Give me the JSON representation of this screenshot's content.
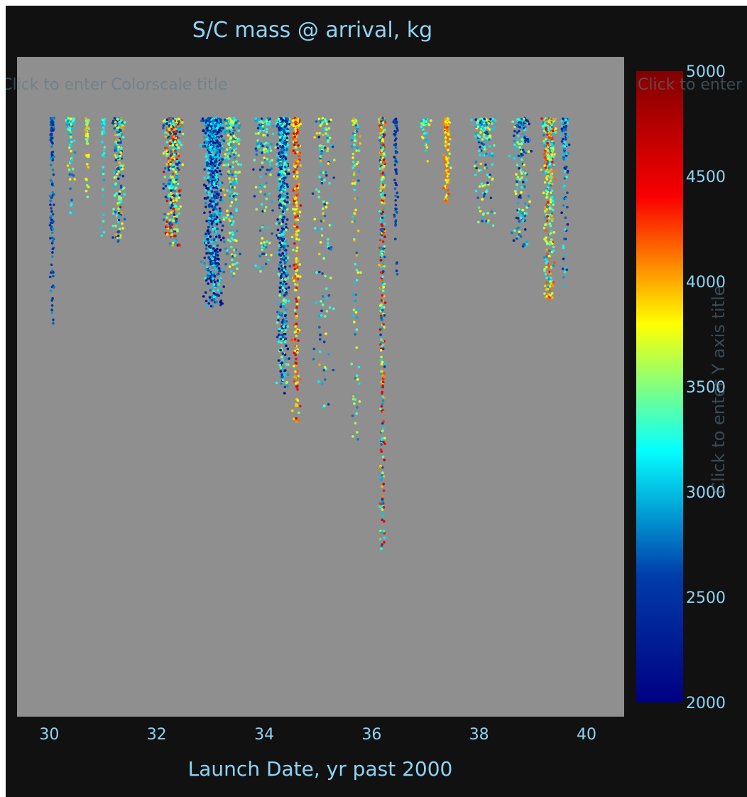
{
  "chart_data": {
    "type": "scatter",
    "title": "S/C mass @ arrival, kg",
    "xlabel": "Launch Date, yr past 2000",
    "ylabel": "",
    "xlim": [
      29.4,
      40.7
    ],
    "x_ticks": [
      30,
      32,
      34,
      36,
      38,
      40
    ],
    "y_ticks": [],
    "yaxis_visible": false,
    "ylim": [
      0,
      1
    ],
    "grid": false,
    "legend": "none",
    "plot_background": "#8f8f8f",
    "paper_background": "#111111",
    "colorscale": {
      "name": "Jet",
      "min": 2000,
      "max": 5000,
      "ticks": [
        2000,
        2500,
        3000,
        3500,
        4000,
        4500,
        5000
      ],
      "stops": [
        "#000083",
        "#003caa",
        "#05ffff",
        "#ffff00",
        "#fa0000",
        "#800000"
      ]
    },
    "editable_hints": {
      "colorscale_title": "Click to enter Colorscale title",
      "y_axis_title": "Click to enter Y axis title"
    },
    "clusters": [
      {
        "x": 30.05,
        "spread": 0.06,
        "n": 120,
        "depth": 0.4,
        "mass": [
          2350,
          2900
        ]
      },
      {
        "x": 30.4,
        "spread": 0.12,
        "n": 70,
        "depth": 0.18,
        "mass": [
          2700,
          3900
        ]
      },
      {
        "x": 30.7,
        "spread": 0.05,
        "n": 50,
        "depth": 0.15,
        "mass": [
          3400,
          4100
        ]
      },
      {
        "x": 31.0,
        "spread": 0.05,
        "n": 40,
        "depth": 0.22,
        "mass": [
          2900,
          3400
        ]
      },
      {
        "x": 31.3,
        "spread": 0.15,
        "n": 200,
        "depth": 0.24,
        "mass": [
          2400,
          4200
        ]
      },
      {
        "x": 32.3,
        "spread": 0.22,
        "n": 520,
        "depth": 0.24,
        "mass": [
          2400,
          4600
        ]
      },
      {
        "x": 33.05,
        "spread": 0.25,
        "n": 900,
        "depth": 0.36,
        "mass": [
          2100,
          3300
        ]
      },
      {
        "x": 33.4,
        "spread": 0.2,
        "n": 220,
        "depth": 0.3,
        "mass": [
          2600,
          4000
        ]
      },
      {
        "x": 34.0,
        "spread": 0.25,
        "n": 140,
        "depth": 0.3,
        "mass": [
          2500,
          3800
        ]
      },
      {
        "x": 34.35,
        "spread": 0.15,
        "n": 700,
        "depth": 0.52,
        "mass": [
          2100,
          3600
        ]
      },
      {
        "x": 34.6,
        "spread": 0.1,
        "n": 280,
        "depth": 0.58,
        "mass": [
          3500,
          4600
        ]
      },
      {
        "x": 35.1,
        "spread": 0.25,
        "n": 140,
        "depth": 0.55,
        "mass": [
          2500,
          4000
        ]
      },
      {
        "x": 35.7,
        "spread": 0.1,
        "n": 110,
        "depth": 0.62,
        "mass": [
          2700,
          4100
        ]
      },
      {
        "x": 36.2,
        "spread": 0.07,
        "n": 400,
        "depth": 0.82,
        "mass": [
          2500,
          4700
        ]
      },
      {
        "x": 36.45,
        "spread": 0.05,
        "n": 70,
        "depth": 0.3,
        "mass": [
          2300,
          2800
        ]
      },
      {
        "x": 37.0,
        "spread": 0.12,
        "n": 40,
        "depth": 0.08,
        "mass": [
          2800,
          3900
        ]
      },
      {
        "x": 37.4,
        "spread": 0.08,
        "n": 130,
        "depth": 0.16,
        "mass": [
          3600,
          4300
        ]
      },
      {
        "x": 38.1,
        "spread": 0.3,
        "n": 150,
        "depth": 0.2,
        "mass": [
          2500,
          3900
        ]
      },
      {
        "x": 38.8,
        "spread": 0.25,
        "n": 170,
        "depth": 0.25,
        "mass": [
          2300,
          3800
        ]
      },
      {
        "x": 39.3,
        "spread": 0.15,
        "n": 450,
        "depth": 0.34,
        "mass": [
          2800,
          4500
        ]
      },
      {
        "x": 39.6,
        "spread": 0.1,
        "n": 90,
        "depth": 0.32,
        "mass": [
          2200,
          3300
        ]
      }
    ]
  }
}
